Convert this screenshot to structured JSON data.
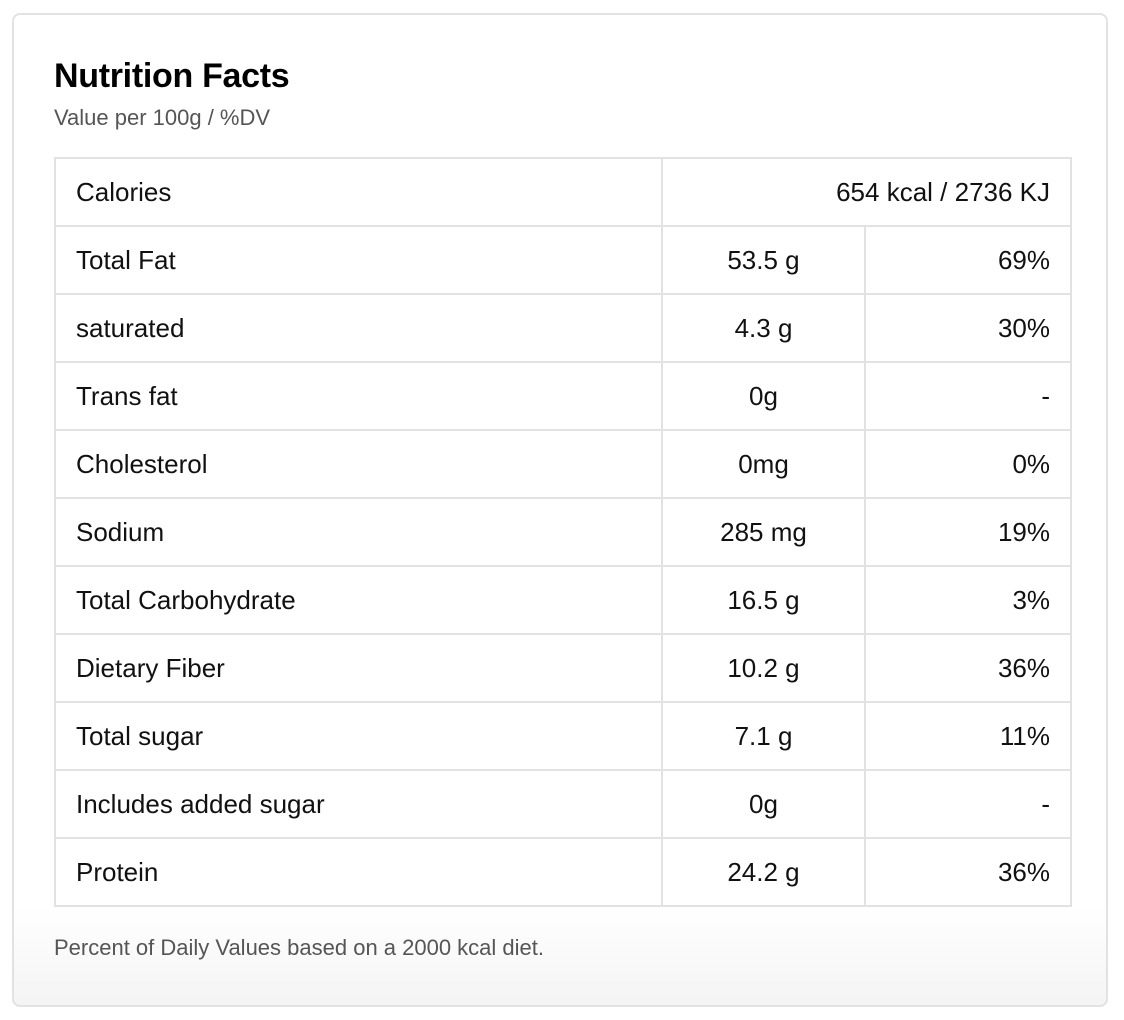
{
  "panel": {
    "title": "Nutrition Facts",
    "subtitle": "Value per 100g / %DV",
    "footnote": "Percent of Daily Values based on a 2000 kcal diet."
  },
  "calories": {
    "label": "Calories",
    "value": "654 kcal / 2736 KJ"
  },
  "nutrients": [
    {
      "label": "Total Fat",
      "amount": "53.5 g",
      "dv": "69%"
    },
    {
      "label": "saturated",
      "amount": "4.3 g",
      "dv": "30%"
    },
    {
      "label": "Trans fat",
      "amount": "0g",
      "dv": "-"
    },
    {
      "label": "Cholesterol",
      "amount": "0mg",
      "dv": "0%"
    },
    {
      "label": "Sodium",
      "amount": "285 mg",
      "dv": "19%"
    },
    {
      "label": "Total Carbohydrate",
      "amount": "16.5 g",
      "dv": "3%"
    },
    {
      "label": "Dietary Fiber",
      "amount": "10.2 g",
      "dv": "36%"
    },
    {
      "label": "Total sugar",
      "amount": "7.1 g",
      "dv": "11%"
    },
    {
      "label": "Includes added sugar",
      "amount": "0g",
      "dv": "-"
    },
    {
      "label": "Protein",
      "amount": "24.2 g",
      "dv": "36%"
    }
  ]
}
